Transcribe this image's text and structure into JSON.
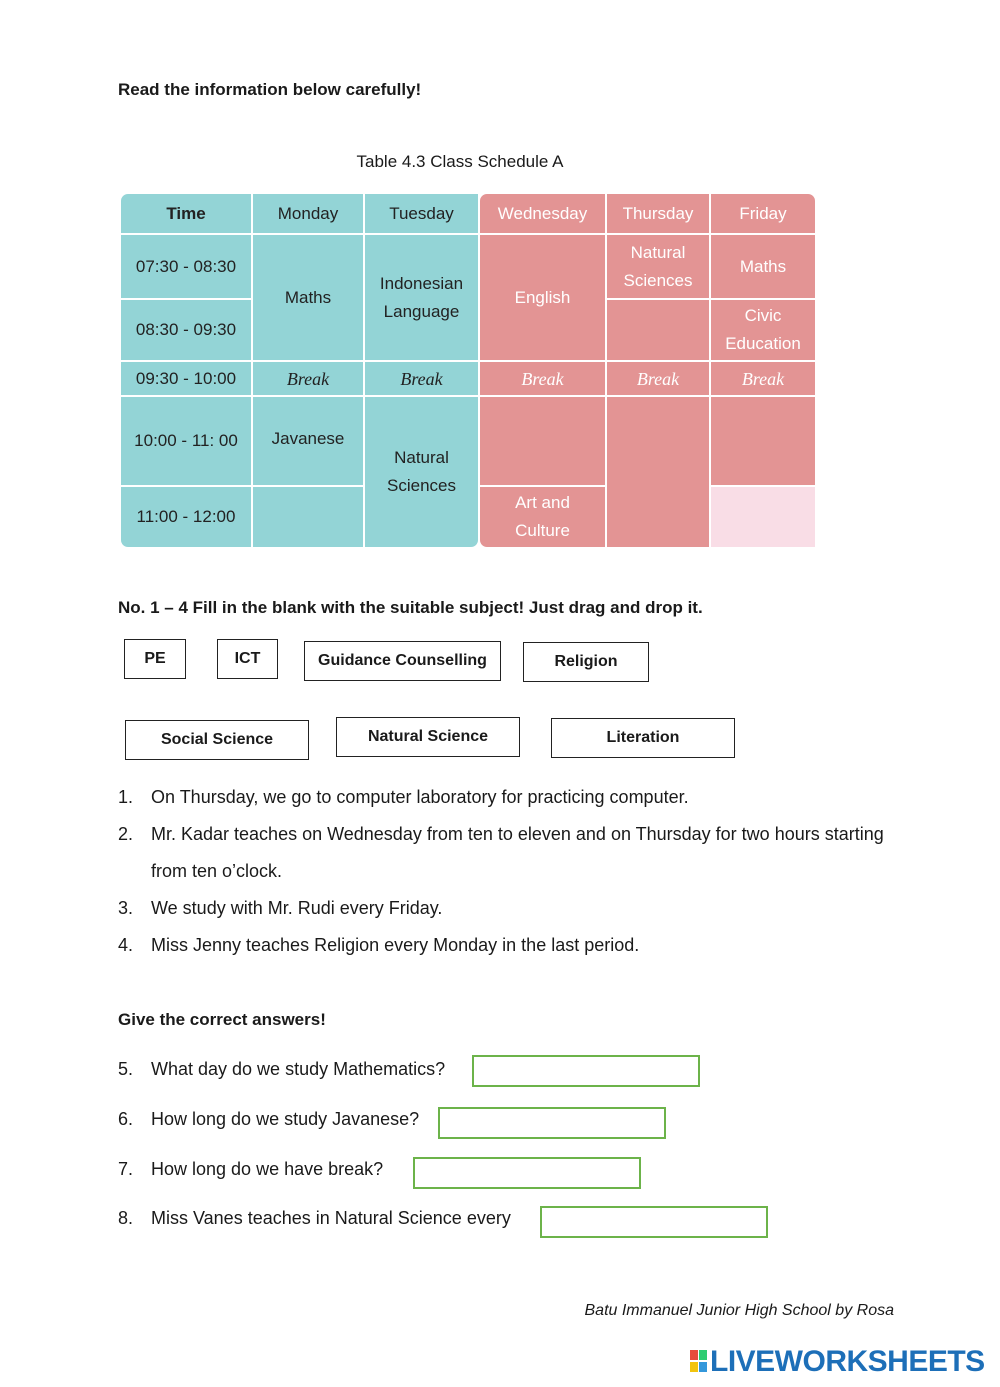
{
  "instruction": "Read the information below carefully!",
  "table": {
    "caption": "Table 4.3 Class Schedule A",
    "header": [
      "Time",
      "Monday",
      "Tuesday",
      "Wednesday",
      "Thursday",
      "Friday"
    ],
    "times": [
      "07:30 - 08:30",
      "08:30 - 09:30",
      "09:30 - 10:00",
      "10:00 - 11: 00",
      "11:00 - 12:00"
    ],
    "cells": {
      "monday_morning": "Maths",
      "tuesday_morning": "Indonesian Language",
      "wednesday_morning": "English",
      "thursday_first": "Natural Sciences",
      "friday_first": "Maths",
      "friday_second": "Civic Education",
      "break": [
        "Break",
        "Break",
        "Break",
        "Break",
        "Break"
      ],
      "monday_fourth": "Javanese",
      "tuesday_late": "Natural Sciences",
      "wednesday_fifth": "Art and Culture"
    }
  },
  "task1": {
    "heading": "No. 1 – 4 Fill in the blank with the suitable subject! Just drag and drop it.",
    "options": [
      "PE",
      "ICT",
      "Guidance Counselling",
      "Religion",
      "Social Science",
      "Natural Science",
      "Literation"
    ],
    "items": [
      {
        "number": "1.",
        "text": "On Thursday, we go to computer laboratory for practicing computer."
      },
      {
        "number": "2.",
        "text": "Mr. Kadar teaches on Wednesday from ten to eleven and on Thursday for two hours starting from ten o’clock."
      },
      {
        "number": "3.",
        "text": "We study with Mr. Rudi every Friday."
      },
      {
        "number": "4.",
        "text": "Miss Jenny teaches Religion every Monday in the last period."
      }
    ]
  },
  "task2": {
    "heading": "Give the correct answers!",
    "items": [
      {
        "number": "5.",
        "text": "What day do we study Mathematics?"
      },
      {
        "number": "6.",
        "text": "How long do we study Javanese?"
      },
      {
        "number": "7.",
        "text": "How long do we have break?"
      },
      {
        "number": "8.",
        "text": "Miss Vanes teaches in Natural Science every"
      }
    ]
  },
  "footer": "Batu Immanuel Junior High School by Rosa",
  "brand": "LIVEWORKSHEETS"
}
